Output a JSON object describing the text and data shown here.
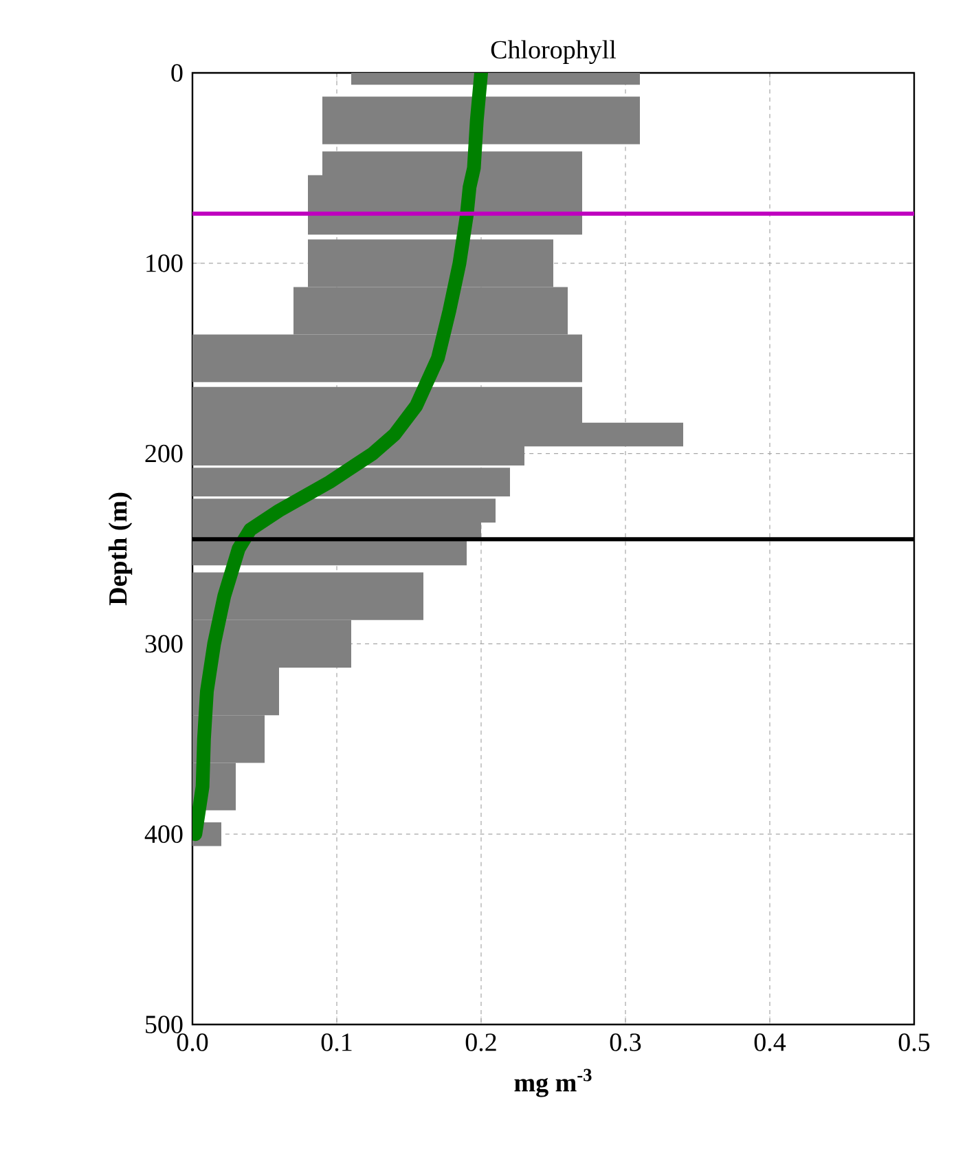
{
  "chart_data": {
    "type": "line",
    "title": "Chlorophyll",
    "xlabel": "mg m$^{-3}$",
    "ylabel": "Depth (m)",
    "xlim": [
      0,
      0.5
    ],
    "ylim": [
      500,
      0
    ],
    "xticks": [
      {
        "value": 0,
        "label": "0.0"
      },
      {
        "value": 0.1,
        "label": "0.1"
      },
      {
        "value": 0.2,
        "label": "0.2"
      },
      {
        "value": 0.3,
        "label": "0.3"
      },
      {
        "value": 0.4,
        "label": "0.4"
      },
      {
        "value": 0.5,
        "label": "0.5"
      }
    ],
    "yticks": [
      0,
      100,
      200,
      300,
      400,
      500
    ],
    "grid": true,
    "marker": "none",
    "line_style": "solid",
    "series": [
      {
        "color": "#008000",
        "x": [
          0.2,
          0.197,
          0.195,
          0.192,
          0.19,
          0.185,
          0.178,
          0.17,
          0.155,
          0.14,
          0.125,
          0.095,
          0.06,
          0.04,
          0.032,
          0.022,
          0.015,
          0.01,
          0.008,
          0.007,
          0.002
        ],
        "values": [
          0,
          25,
          50,
          60,
          75,
          100,
          125,
          150,
          175,
          190,
          200,
          215,
          230,
          240,
          250,
          275,
          300,
          325,
          350,
          375,
          400
        ],
        "xerrors": [
          [
            0.11,
            0.31
          ],
          [
            0.09,
            0.31
          ],
          [
            0.09,
            0.27
          ],
          [
            0.08,
            0.27
          ],
          [
            0.08,
            0.27
          ],
          [
            0.08,
            0.25
          ],
          [
            0.07,
            0.26
          ],
          [
            0.0,
            0.27
          ],
          [
            0.0,
            0.27
          ],
          [
            0.0,
            0.34
          ],
          [
            0.0,
            0.23
          ],
          [
            0.0,
            0.22
          ],
          [
            0.0,
            0.21
          ],
          [
            0.0,
            0.2
          ],
          [
            0.0,
            0.19
          ],
          [
            0.0,
            0.16
          ],
          [
            0.0,
            0.11
          ],
          [
            0.0,
            0.06
          ],
          [
            0.0,
            0.05
          ],
          [
            0.0,
            0.03
          ],
          [
            0.0,
            0.02
          ]
        ]
      }
    ],
    "ref_lines": [
      {
        "axis": "y",
        "value": 74,
        "color": "#bf00bf"
      },
      {
        "axis": "y",
        "value": 245,
        "color": "#000000"
      }
    ]
  }
}
